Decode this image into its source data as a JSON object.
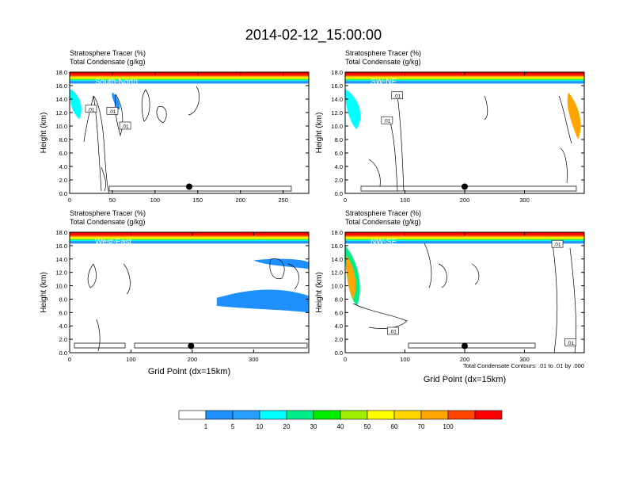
{
  "figure": {
    "title": "2014-02-12_15:00:00",
    "footnote": "Total Condensate Contours: .01 to .01 by .000"
  },
  "colors": {
    "bins": [
      "#ffffff",
      "#1e90ff",
      "#28a0ff",
      "#00ffff",
      "#00ee88",
      "#00ee00",
      "#a0ee00",
      "#ffff00",
      "#ffd700",
      "#ffa500",
      "#ff4500",
      "#ff0000"
    ]
  },
  "colorbar": {
    "labels": [
      "1",
      "5",
      "10",
      "20",
      "30",
      "40",
      "50",
      "60",
      "70",
      "100"
    ]
  },
  "chart_data": [
    {
      "type": "heatmap",
      "title": "Stratosphere Tracer   (%)",
      "subtitle": "Total Condensate   (g/kg)",
      "panel_label": "South-North",
      "xlabel": "",
      "ylabel": "Height (km)",
      "xlim": [
        0,
        280
      ],
      "ylim": [
        0,
        18
      ],
      "xticks": [
        "0",
        "50",
        "100",
        "150",
        "200",
        "250"
      ],
      "yticks": [
        "0.0",
        "2.0",
        "4.0",
        "6.0",
        "8.0",
        "10.0",
        "12.0",
        "14.0",
        "16.0",
        "18.0"
      ],
      "contour_labels": [
        {
          "text": ".01",
          "x": 25,
          "y": 12.5
        },
        {
          "text": ".01",
          "x": 50,
          "y": 12.2
        },
        {
          "text": ".01",
          "x": 65,
          "y": 10.0
        }
      ],
      "marker": {
        "x": 140,
        "y": 1.0
      },
      "tracer_front_km": 16.3
    },
    {
      "type": "heatmap",
      "title": "Stratosphere Tracer   (%)",
      "subtitle": "Total Condensate   (g/kg)",
      "panel_label": "SW-NE",
      "xlabel": "",
      "ylabel": "Height (km)",
      "xlim": [
        0,
        400
      ],
      "ylim": [
        0,
        18
      ],
      "xticks": [
        "0",
        "100",
        "200",
        "300"
      ],
      "yticks": [
        "0.0",
        "2.0",
        "4.0",
        "6.0",
        "8.0",
        "10.0",
        "12.0",
        "14.0",
        "16.0",
        "18.0"
      ],
      "contour_labels": [
        {
          "text": ".01",
          "x": 87,
          "y": 14.5
        },
        {
          "text": ".01",
          "x": 70,
          "y": 10.8
        }
      ],
      "marker": {
        "x": 200,
        "y": 1.0
      },
      "tracer_front_km": 16.3
    },
    {
      "type": "heatmap",
      "title": "Stratosphere Tracer   (%)",
      "subtitle": "Total Condensate   (g/kg)",
      "panel_label": "West-East",
      "xlabel": "Grid Point (dx=15km)",
      "ylabel": "Height (km)",
      "xlim": [
        0,
        390
      ],
      "ylim": [
        0,
        18
      ],
      "xticks": [
        "0",
        "100",
        "200",
        "300"
      ],
      "yticks": [
        "0.0",
        "2.0",
        "4.0",
        "6.0",
        "8.0",
        "10.0",
        "12.0",
        "14.0",
        "16.0",
        "18.0"
      ],
      "contour_labels": [],
      "marker": {
        "x": 198,
        "y": 1.0
      },
      "tracer_front_km": 16.3
    },
    {
      "type": "heatmap",
      "title": "Stratosphere Tracer   (%)",
      "subtitle": "Total Condensate   (g/kg)",
      "panel_label": "NW-SE",
      "xlabel": "Grid Point (dx=15km)",
      "ylabel": "Height (km)",
      "xlim": [
        0,
        400
      ],
      "ylim": [
        0,
        18
      ],
      "xticks": [
        "0",
        "100",
        "200",
        "300"
      ],
      "yticks": [
        "0.0",
        "2.0",
        "4.0",
        "6.0",
        "8.0",
        "10.0",
        "12.0",
        "14.0",
        "16.0",
        "18.0"
      ],
      "contour_labels": [
        {
          "text": ".01",
          "x": 80,
          "y": 3.2
        },
        {
          "text": ".01",
          "x": 355,
          "y": 16.2
        },
        {
          "text": ".01",
          "x": 377,
          "y": 1.5
        }
      ],
      "marker": {
        "x": 200,
        "y": 1.0
      },
      "tracer_front_km": 16.3
    }
  ]
}
